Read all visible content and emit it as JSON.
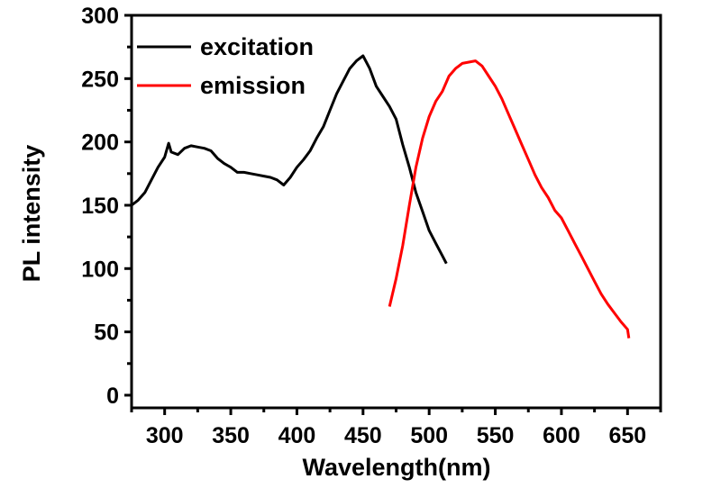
{
  "chart_data": {
    "type": "line",
    "title": "",
    "xlabel": "Wavelength(nm)",
    "ylabel": "PL intensity",
    "xlim": [
      275,
      675
    ],
    "ylim": [
      -10,
      300
    ],
    "x_ticks": [
      300,
      350,
      400,
      450,
      500,
      550,
      600,
      650
    ],
    "x_tick_labels": [
      "300",
      "350",
      "400",
      "450",
      "500",
      "550",
      "600",
      "650"
    ],
    "y_ticks": [
      0,
      50,
      100,
      150,
      200,
      250,
      300
    ],
    "y_tick_labels": [
      "0",
      "50",
      "100",
      "150",
      "200",
      "250",
      "300"
    ],
    "grid": false,
    "legend_position": "top-left",
    "series": [
      {
        "name": "excitation",
        "color": "#000000",
        "x": [
          275,
          280,
          285,
          290,
          295,
          300,
          303,
          305,
          310,
          315,
          320,
          325,
          330,
          335,
          340,
          345,
          350,
          355,
          360,
          365,
          370,
          375,
          380,
          385,
          390,
          395,
          400,
          405,
          410,
          415,
          420,
          425,
          430,
          435,
          440,
          445,
          450,
          455,
          460,
          465,
          470,
          475,
          480,
          485,
          490,
          495,
          500,
          505,
          510,
          513
        ],
        "y": [
          150,
          154,
          160,
          170,
          180,
          188,
          199,
          192,
          190,
          195,
          197,
          196,
          195,
          193,
          187,
          183,
          180,
          176,
          176,
          175,
          174,
          173,
          172,
          170,
          166,
          172,
          180,
          186,
          193,
          203,
          212,
          225,
          238,
          248,
          258,
          264,
          268,
          258,
          244,
          236,
          228,
          218,
          198,
          180,
          160,
          145,
          130,
          120,
          110,
          104
        ]
      },
      {
        "name": "emission",
        "color": "#ff0000",
        "x": [
          470,
          475,
          480,
          485,
          490,
          495,
          500,
          505,
          510,
          515,
          520,
          525,
          530,
          535,
          540,
          545,
          550,
          555,
          560,
          565,
          570,
          575,
          580,
          585,
          590,
          595,
          600,
          605,
          610,
          615,
          620,
          625,
          630,
          635,
          640,
          645,
          650,
          651
        ],
        "y": [
          70,
          92,
          118,
          150,
          180,
          203,
          220,
          232,
          240,
          252,
          258,
          262,
          263,
          264,
          260,
          252,
          244,
          234,
          222,
          210,
          198,
          186,
          174,
          164,
          156,
          146,
          140,
          130,
          120,
          110,
          100,
          90,
          80,
          72,
          65,
          58,
          52,
          45
        ]
      }
    ]
  }
}
